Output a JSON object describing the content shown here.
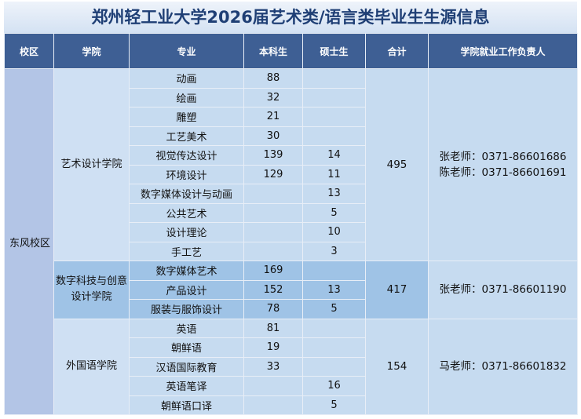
{
  "title": "郑州轻工业大学2026届艺术类/语言类毕业生生源信息",
  "table": {
    "header": [
      "校区",
      "学院",
      "专业",
      "本科生",
      "硕士生",
      "合计",
      "学院就业工作负责人"
    ],
    "campus": "东风校区",
    "colleges": [
      {
        "name": "艺术设计学院",
        "total": 495,
        "contacts": [
          "张老师：0371-86601686",
          "陈老师：0371-86601691"
        ],
        "majors": [
          {
            "name": "动画",
            "undergrad": 88,
            "master": null
          },
          {
            "name": "绘画",
            "undergrad": 32,
            "master": null
          },
          {
            "name": "雕塑",
            "undergrad": 21,
            "master": null
          },
          {
            "name": "工艺美术",
            "undergrad": 30,
            "master": null
          },
          {
            "name": "视觉传达设计",
            "undergrad": 139,
            "master": 14
          },
          {
            "name": "环境设计",
            "undergrad": 129,
            "master": 11
          },
          {
            "name": "数字媒体设计与动画",
            "undergrad": null,
            "master": 13
          },
          {
            "name": "公共艺术",
            "undergrad": null,
            "master": 5
          },
          {
            "name": "设计理论",
            "undergrad": null,
            "master": 10
          },
          {
            "name": "手工艺",
            "undergrad": null,
            "master": 3
          }
        ]
      },
      {
        "name": "数字科技与创意设计学院",
        "total": 417,
        "contacts": [
          "张老师：0371-86601190"
        ],
        "majors": [
          {
            "name": "数字媒体艺术",
            "undergrad": 169,
            "master": null
          },
          {
            "name": "产品设计",
            "undergrad": 152,
            "master": 13
          },
          {
            "name": "服装与服饰设计",
            "undergrad": 78,
            "master": 5
          }
        ]
      },
      {
        "name": "外国语学院",
        "total": 154,
        "contacts": [
          "马老师：0371-86601832"
        ],
        "majors": [
          {
            "name": "英语",
            "undergrad": 81,
            "master": null
          },
          {
            "name": "朝鲜语",
            "undergrad": 19,
            "master": null
          },
          {
            "name": "汉语国际教育",
            "undergrad": 33,
            "master": null
          },
          {
            "name": "英语笔译",
            "undergrad": null,
            "master": 16
          },
          {
            "name": "朝鲜语口译",
            "undergrad": null,
            "master": 5
          }
        ]
      }
    ]
  }
}
